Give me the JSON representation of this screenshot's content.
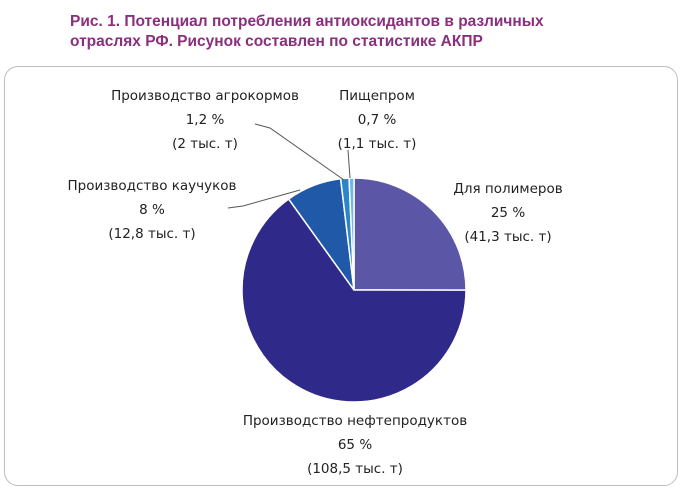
{
  "title_line1": "Рис. 1. Потенциал потребления антиоксидантов в различных",
  "title_line2": "отраслях РФ. Рисунок составлен по статистике АКПР",
  "chart_data": {
    "type": "pie",
    "unit": "%",
    "slices": [
      {
        "name": "Для полимеров",
        "value": 25,
        "value_label": "25 %",
        "amount": "(41,3 тыс. т)",
        "color": "#5b56a6"
      },
      {
        "name": "Производство нефтепродуктов",
        "value": 65,
        "value_label": "65 %",
        "amount": "(108,5 тыс. т)",
        "color": "#2f2a8a"
      },
      {
        "name": "Производство каучуков",
        "value": 8,
        "value_label": "8 %",
        "amount": "(12,8 тыс. т)",
        "color": "#1f59a8"
      },
      {
        "name": "Производство агрокормов",
        "value": 1.2,
        "value_label": "1,2 %",
        "amount": "(2 тыс. т)",
        "color": "#2a86c8"
      },
      {
        "name": "Пищепром",
        "value": 0.7,
        "value_label": "0,7 %",
        "amount": "(1,1 тыс. т)",
        "color": "#6fb6e6"
      }
    ]
  }
}
